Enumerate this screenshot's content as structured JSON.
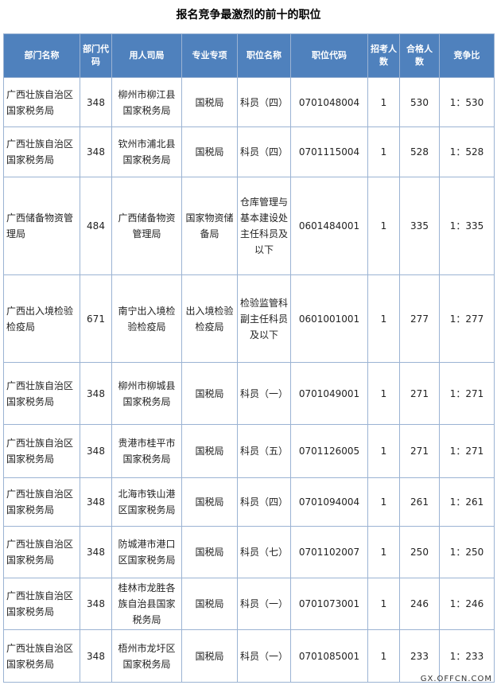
{
  "title": "报名竞争最激烈的前十的职位",
  "table": {
    "header": [
      "部门名称",
      "部门代码",
      "用人司局",
      "专业专项",
      "职位名称",
      "职位代码",
      "招考人数",
      "合格人数",
      "竞争比"
    ],
    "rows": [
      [
        "广西壮族自治区国家税务局",
        "348",
        "柳州市柳江县国家税务局",
        "国税局",
        "科员（四）",
        "0701048004",
        "1",
        "530",
        "1：530"
      ],
      [
        "广西壮族自治区国家税务局",
        "348",
        "钦州市浦北县国家税务局",
        "国税局",
        "科员（四）",
        "0701115004",
        "1",
        "528",
        "1：528"
      ],
      [
        "广西储备物资管理局",
        "484",
        "广西储备物资管理局",
        "国家物资储备局",
        "仓库管理与基本建设处主任科员及以下",
        "0601484001",
        "1",
        "335",
        "1：335"
      ],
      [
        "广西出入境检验检疫局",
        "671",
        "南宁出入境检验检疫局",
        "出入境检验检疫局",
        "检验监管科副主任科员及以下",
        "0601001001",
        "1",
        "277",
        "1：277"
      ],
      [
        "广西壮族自治区国家税务局",
        "348",
        "柳州市柳城县国家税务局",
        "国税局",
        "科员（一）",
        "0701049001",
        "1",
        "271",
        "1：271"
      ],
      [
        "广西壮族自治区国家税务局",
        "348",
        "贵港市桂平市国家税务局",
        "国税局",
        "科员（五）",
        "0701126005",
        "1",
        "271",
        "1：271"
      ],
      [
        "广西壮族自治区国家税务局",
        "348",
        "北海市铁山港区国家税务局",
        "国税局",
        "科员（四）",
        "0701094004",
        "1",
        "261",
        "1：261"
      ],
      [
        "广西壮族自治区国家税务局",
        "348",
        "防城港市港口区国家税务局",
        "国税局",
        "科员（七）",
        "0701102007",
        "1",
        "250",
        "1：250"
      ],
      [
        "广西壮族自治区国家税务局",
        "348",
        "桂林市龙胜各族自治县国家税务局",
        "国税局",
        "科员（一）",
        "0701073001",
        "1",
        "246",
        "1：246"
      ],
      [
        "广西壮族自治区国家税务局",
        "348",
        "梧州市龙圩区国家税务局",
        "国税局",
        "科员（一）",
        "0701085001",
        "1",
        "233",
        "1：233"
      ]
    ]
  },
  "footer": "GX.OFFCN.COM"
}
